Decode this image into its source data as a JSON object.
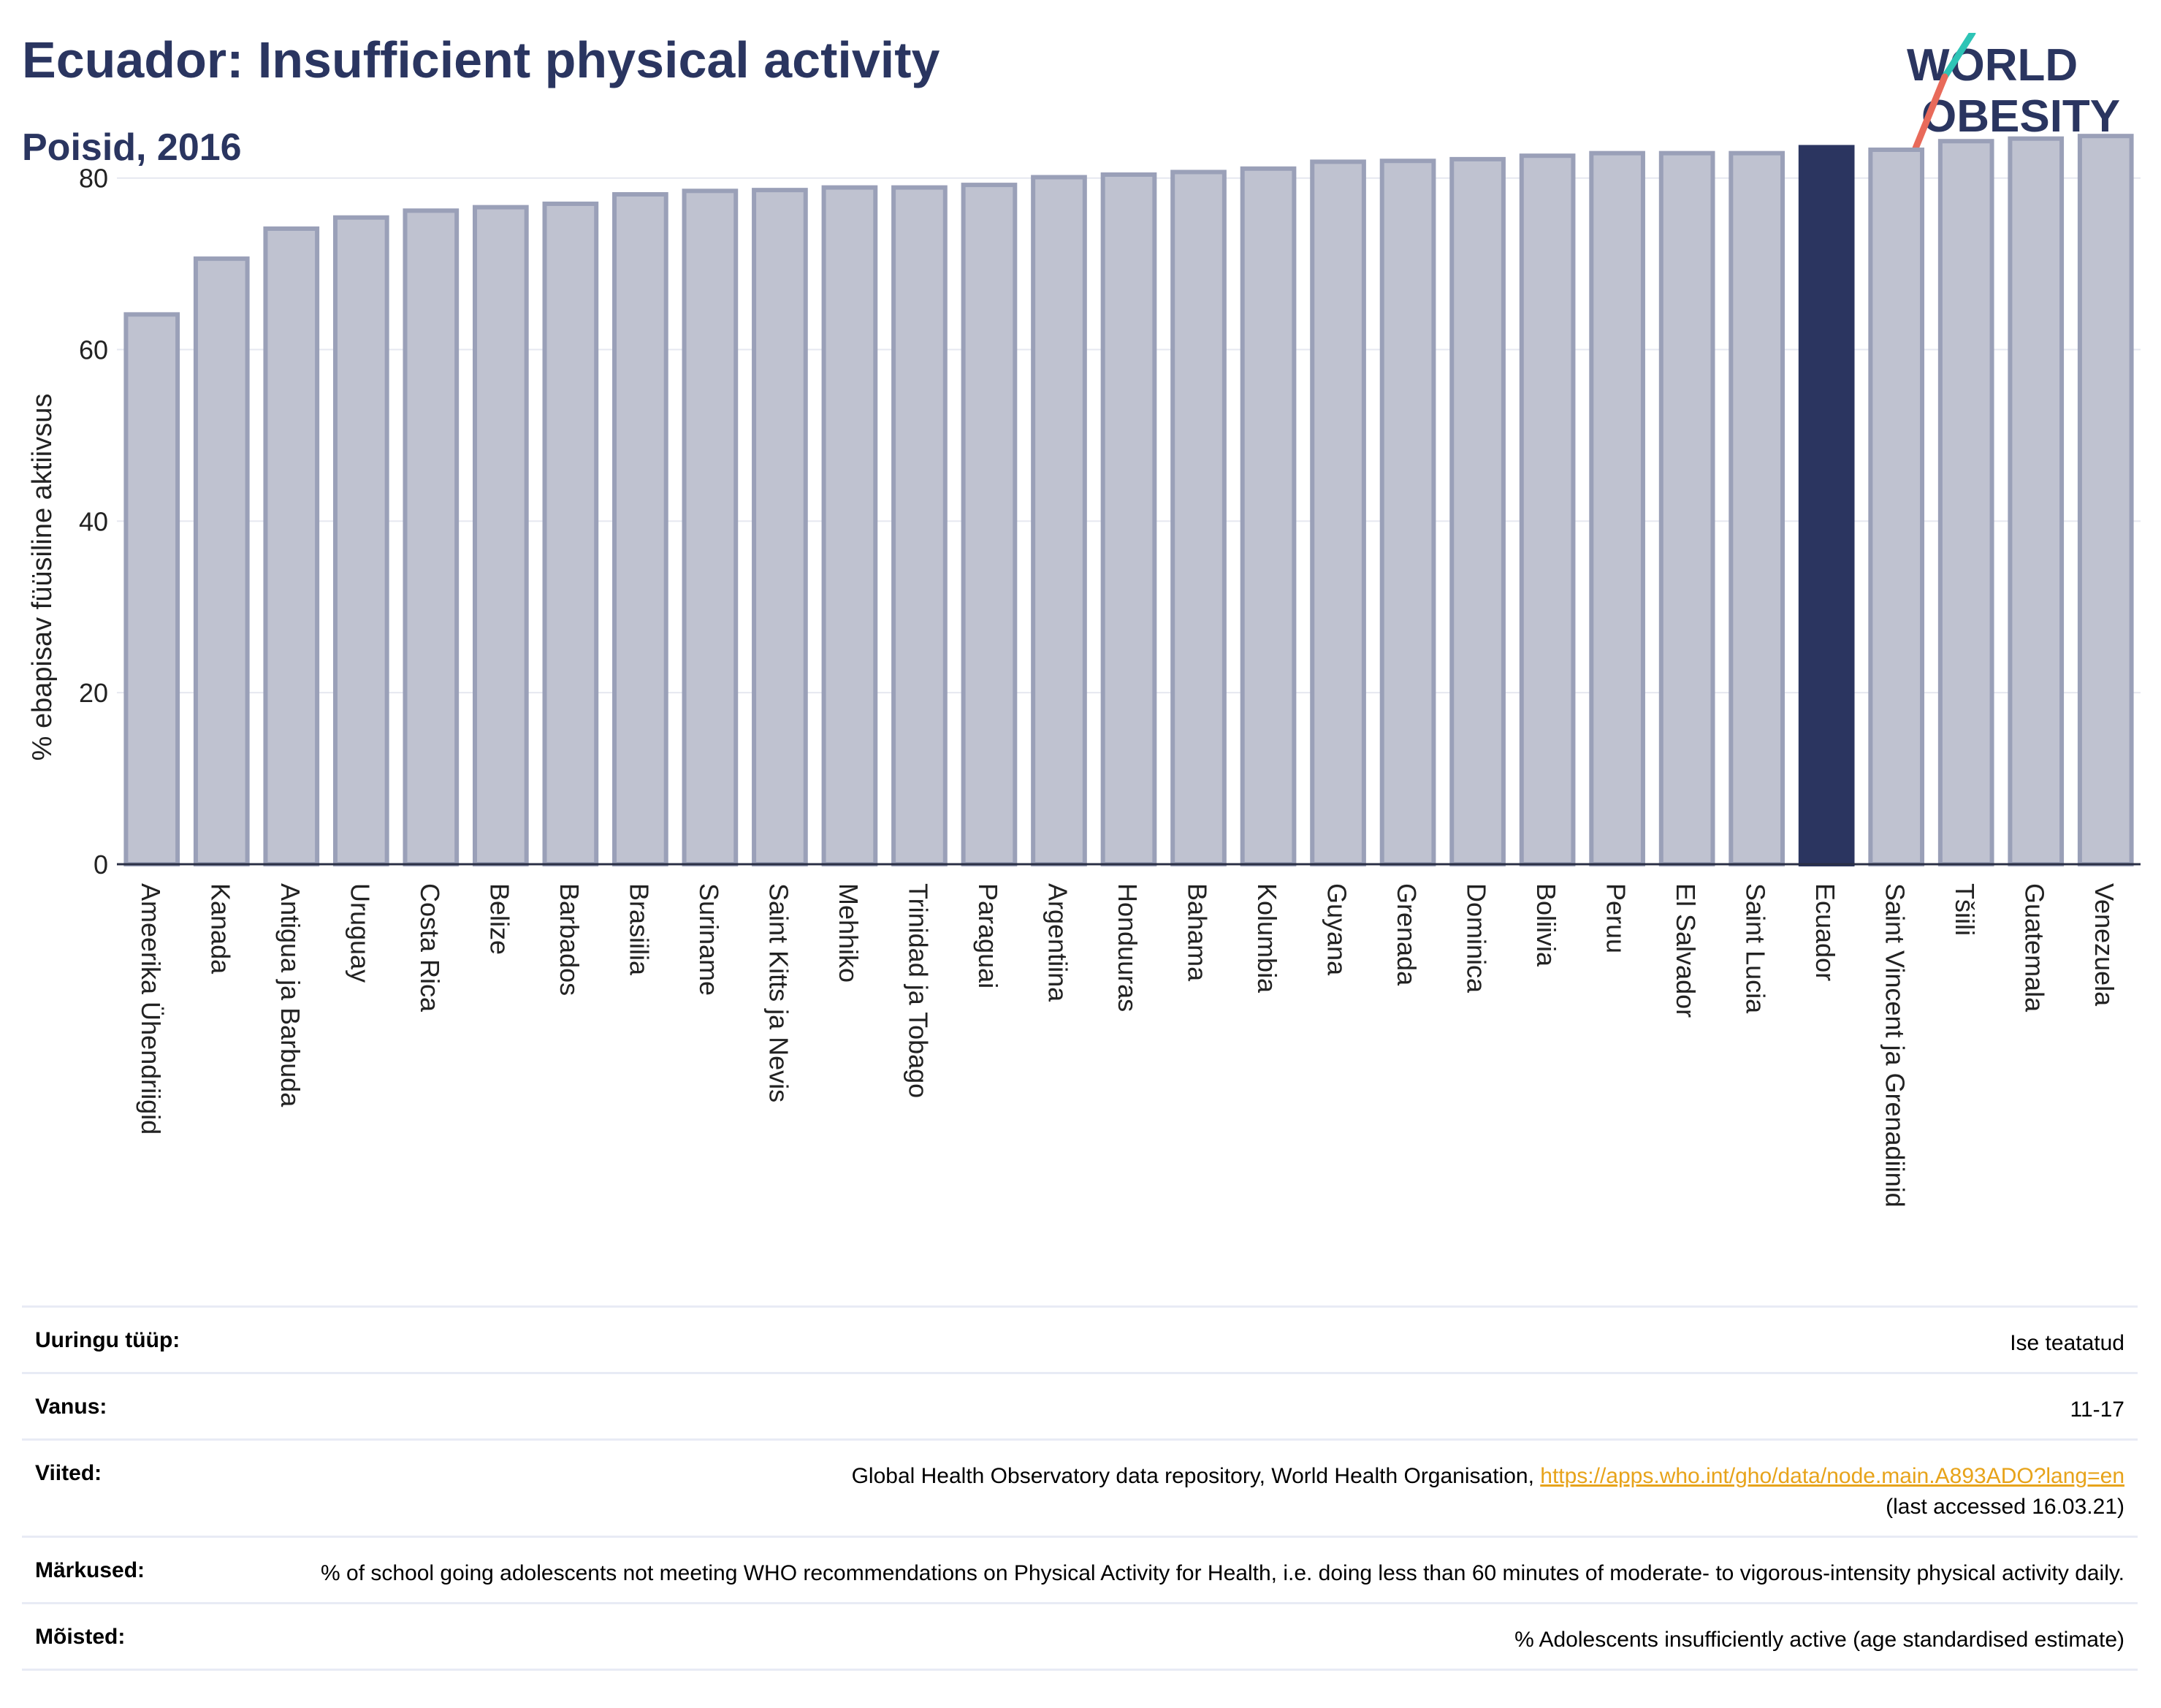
{
  "title": "Ecuador: Insufficient physical activity",
  "subtitle": "Poisid, 2016",
  "logo": {
    "line1": "WORLD",
    "line2": "OBESITY"
  },
  "colors": {
    "bar": "#bfc2d0",
    "bar_border": "#9aa0b8",
    "highlight": "#2b3560",
    "title": "#2a3560",
    "link": "#e7a31a"
  },
  "chart_data": {
    "type": "bar",
    "ylabel": "% ebapisav füüsiline aktiivsus",
    "ylim": [
      0,
      85
    ],
    "yticks": [
      0,
      20,
      40,
      60,
      80
    ],
    "grid": true,
    "highlight": "Ecuador",
    "categories": [
      "Ameerika Ühendriigid",
      "Kanada",
      "Antigua ja Barbuda",
      "Uruguay",
      "Costa Rica",
      "Belize",
      "Barbados",
      "Brasiilia",
      "Suriname",
      "Saint Kitts ja Nevis",
      "Mehhiko",
      "Trinidad ja Tobago",
      "Paraguai",
      "Argentiina",
      "Honduuras",
      "Bahama",
      "Kolumbia",
      "Guyana",
      "Grenada",
      "Dominica",
      "Boliivia",
      "Peruu",
      "El Salvador",
      "Saint Lucia",
      "Ecuador",
      "Saint Vincent ja Grenadiinid",
      "Tšiili",
      "Guatemala",
      "Venezuela"
    ],
    "values": [
      64.1,
      70.6,
      74.1,
      75.4,
      76.2,
      76.6,
      77.0,
      78.1,
      78.5,
      78.6,
      78.9,
      78.9,
      79.2,
      80.1,
      80.4,
      80.7,
      81.1,
      81.9,
      82.0,
      82.2,
      82.6,
      82.9,
      82.9,
      82.9,
      83.6,
      83.3,
      84.3,
      84.6,
      84.9
    ]
  },
  "info": [
    {
      "label": "Uuringu tüüp:",
      "value": "Ise teatatud"
    },
    {
      "label": "Vanus:",
      "value": "11-17"
    },
    {
      "label": "Viited:",
      "value": "Global Health Observatory data repository, World Health Organisation,",
      "link": "https://apps.who.int/gho/data/node.main.A893ADO?lang=en",
      "value2": "(last accessed 16.03.21)"
    },
    {
      "label": "Märkused:",
      "value": "% of school going adolescents not meeting WHO recommendations on Physical Activity for Health, i.e. doing less than 60 minutes of moderate- to vigorous-intensity physical activity daily."
    },
    {
      "label": "Mõisted:",
      "value": "% Adolescents insufficiently active (age standardised estimate)"
    }
  ]
}
